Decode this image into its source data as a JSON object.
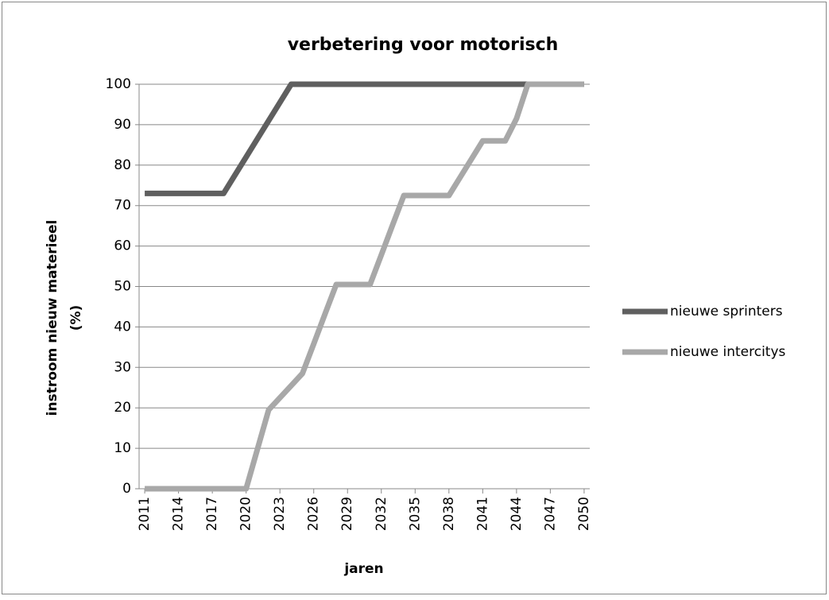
{
  "chart_data": {
    "type": "line",
    "title": "verbetering voor motorisch",
    "x_label": "jaren",
    "y_label": [
      "instroom nieuw materieel",
      "(%)"
    ],
    "x": [
      2011,
      2012,
      2013,
      2014,
      2015,
      2016,
      2017,
      2018,
      2019,
      2020,
      2021,
      2022,
      2023,
      2024,
      2025,
      2026,
      2027,
      2028,
      2029,
      2030,
      2031,
      2032,
      2033,
      2034,
      2035,
      2036,
      2037,
      2038,
      2039,
      2040,
      2041,
      2042,
      2043,
      2044,
      2045,
      2046,
      2047,
      2048,
      2049,
      2050
    ],
    "series": [
      {
        "name": "nieuwe sprinters",
        "color": "#5f5f5f",
        "values": [
          73,
          73,
          73,
          73,
          73,
          73,
          73,
          73,
          77.5,
          82,
          86.5,
          91,
          95.5,
          100,
          100,
          100,
          100,
          100,
          100,
          100,
          100,
          100,
          100,
          100,
          100,
          100,
          100,
          100,
          100,
          100,
          100,
          100,
          100,
          100,
          100,
          100,
          100,
          100,
          100,
          100
        ]
      },
      {
        "name": "nieuwe intercitys",
        "color": "#a8a8a8",
        "values": [
          0,
          0,
          0,
          0,
          0,
          0,
          0,
          0,
          0,
          0,
          9.75,
          19.5,
          22.5,
          25.5,
          28.5,
          35.8,
          43.2,
          50.5,
          50.5,
          50.5,
          50.5,
          57.8,
          65.2,
          72.5,
          72.5,
          72.5,
          72.5,
          72.5,
          77,
          81.5,
          86,
          86,
          86,
          91.5,
          100,
          100,
          100,
          100,
          100,
          100
        ]
      }
    ],
    "xlim": [
      2011,
      2050
    ],
    "xticks": [
      2011,
      2014,
      2017,
      2020,
      2023,
      2026,
      2029,
      2032,
      2035,
      2038,
      2041,
      2044,
      2047,
      2050
    ],
    "ylim": [
      0,
      100
    ],
    "yticks": [
      0,
      10,
      20,
      30,
      40,
      50,
      60,
      70,
      80,
      90,
      100
    ],
    "grid": true,
    "legend": "right"
  }
}
